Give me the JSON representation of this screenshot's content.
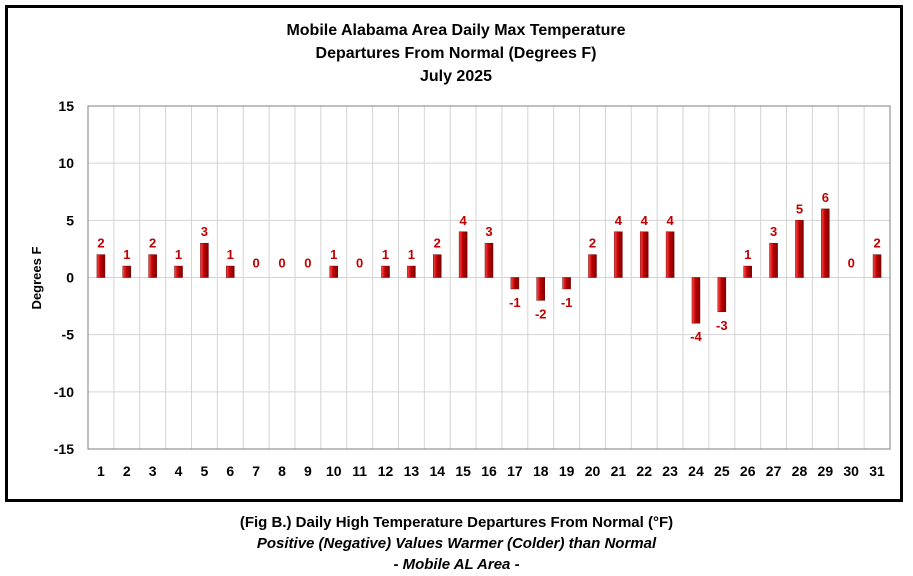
{
  "chart_data": {
    "type": "bar",
    "title_lines": [
      "Mobile Alabama Area Daily Max Temperature",
      "Departures From Normal (Degrees F)",
      "July 2025"
    ],
    "xlabel": "",
    "ylabel": "Degrees F",
    "ylim": [
      -15,
      15
    ],
    "yticks": [
      15,
      10,
      5,
      0,
      -5,
      -10,
      -15
    ],
    "grid": true,
    "legend": "none",
    "categories": [
      "1",
      "2",
      "3",
      "4",
      "5",
      "6",
      "7",
      "8",
      "9",
      "10",
      "11",
      "12",
      "13",
      "14",
      "15",
      "16",
      "17",
      "18",
      "19",
      "20",
      "21",
      "22",
      "23",
      "24",
      "25",
      "26",
      "27",
      "28",
      "29",
      "30",
      "31"
    ],
    "values": [
      2,
      1,
      2,
      1,
      3,
      1,
      0,
      0,
      0,
      1,
      0,
      1,
      1,
      2,
      4,
      3,
      -1,
      -2,
      -1,
      2,
      4,
      4,
      4,
      -4,
      -3,
      1,
      3,
      5,
      6,
      0,
      2
    ],
    "colors": {
      "bar": "#c00000",
      "bar_dark": "#7a0000",
      "bar_highlight": "#ff4a4a",
      "label": "#c00000",
      "grid": "#d4d4d4"
    }
  },
  "caption": {
    "line1": "(Fig B.) Daily High Temperature Departures From Normal (°F)",
    "line2": "Positive (Negative) Values Warmer (Colder) than Normal",
    "line3": "- Mobile AL Area -"
  }
}
